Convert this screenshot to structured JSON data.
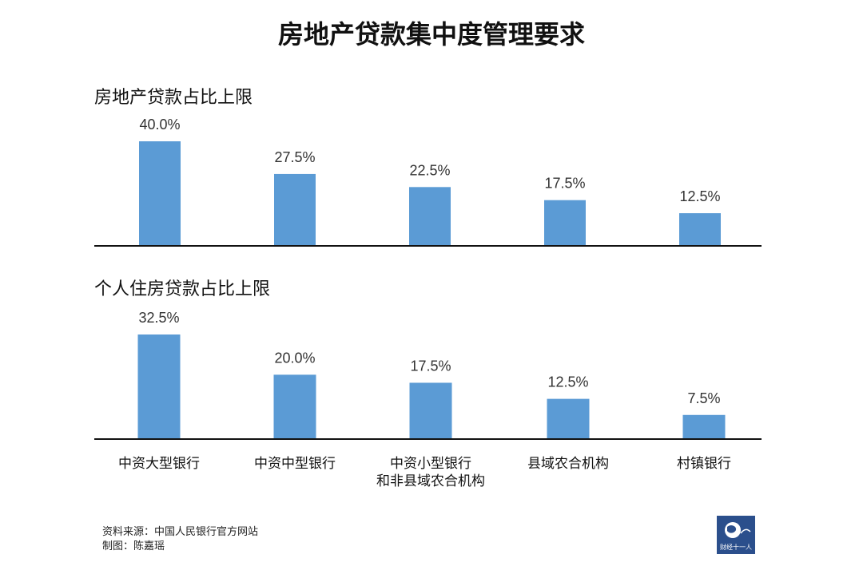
{
  "title": "房地产贷款集中度管理要求",
  "colors": {
    "bar": "#5b9bd5",
    "axis": "#111111"
  },
  "chart_data": [
    {
      "type": "bar",
      "title": "房地产贷款占比上限",
      "categories": [
        "中资大型银行",
        "中资中型银行",
        "中资小型银行\n和非县域农合机构",
        "县域农合机构",
        "村镇银行"
      ],
      "values": [
        40.0,
        27.5,
        22.5,
        17.5,
        12.5
      ],
      "value_labels": [
        "40.0%",
        "27.5%",
        "22.5%",
        "17.5%",
        "12.5%"
      ],
      "unit": "%",
      "ylim": [
        0,
        40
      ],
      "grid": false
    },
    {
      "type": "bar",
      "title": "个人住房贷款占比上限",
      "categories": [
        "中资大型银行",
        "中资中型银行",
        "中资小型银行\n和非县域农合机构",
        "县域农合机构",
        "村镇银行"
      ],
      "values": [
        32.5,
        20.0,
        17.5,
        12.5,
        7.5
      ],
      "value_labels": [
        "32.5%",
        "20.0%",
        "17.5%",
        "12.5%",
        "7.5%"
      ],
      "unit": "%",
      "ylim": [
        0,
        32.5
      ],
      "grid": false
    }
  ],
  "footer": {
    "source": "资料来源：中国人民银行官方网站",
    "author": "制图：陈嘉瑶"
  },
  "logo": {
    "text": "财经十一人",
    "icon": "globe-icon"
  }
}
